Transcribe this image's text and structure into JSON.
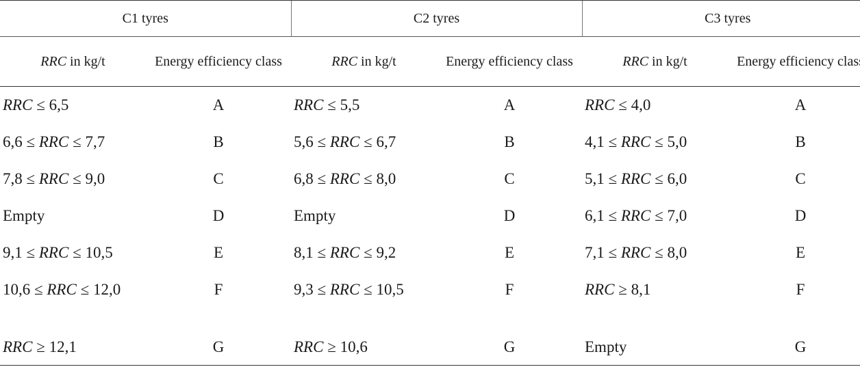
{
  "groups": [
    "C1 tyres",
    "C2 tyres",
    "C3 tyres"
  ],
  "subheaders": {
    "rrc_var": "RRC",
    "rrc_suffix": " in kg/t",
    "class": "Energy efficiency class"
  },
  "rows": [
    {
      "c1": "RRC ≤ 6,5",
      "c1_class": "A",
      "c2": "RRC ≤ 5,5",
      "c2_class": "A",
      "c3": "RRC ≤ 4,0",
      "c3_class": "A"
    },
    {
      "c1": "6,6 ≤ RRC ≤ 7,7",
      "c1_class": "B",
      "c2": "5,6 ≤ RRC ≤ 6,7",
      "c2_class": "B",
      "c3": "4,1 ≤ RRC ≤ 5,0",
      "c3_class": "B"
    },
    {
      "c1": "7,8 ≤ RRC ≤ 9,0",
      "c1_class": "C",
      "c2": "6,8 ≤ RRC ≤ 8,0",
      "c2_class": "C",
      "c3": "5,1 ≤ RRC ≤ 6,0",
      "c3_class": "C"
    },
    {
      "c1": "Empty",
      "c1_class": "D",
      "c2": "Empty",
      "c2_class": "D",
      "c3": "6,1 ≤ RRC ≤ 7,0",
      "c3_class": "D"
    },
    {
      "c1": "9,1 ≤ RRC ≤ 10,5",
      "c1_class": "E",
      "c2": "8,1 ≤ RRC ≤ 9,2",
      "c2_class": "E",
      "c3": "7,1 ≤ RRC ≤ 8,0",
      "c3_class": "E"
    },
    {
      "c1": "10,6 ≤ RRC ≤ 12,0",
      "c1_class": "F",
      "c2": "9,3 ≤ RRC ≤ 10,5",
      "c2_class": "F",
      "c3": "RRC ≥ 8,1",
      "c3_class": "F"
    },
    {
      "c1": "RRC ≥ 12,1",
      "c1_class": "G",
      "c2": "RRC ≥ 10,6",
      "c2_class": "G",
      "c3": "Empty",
      "c3_class": "G"
    }
  ]
}
